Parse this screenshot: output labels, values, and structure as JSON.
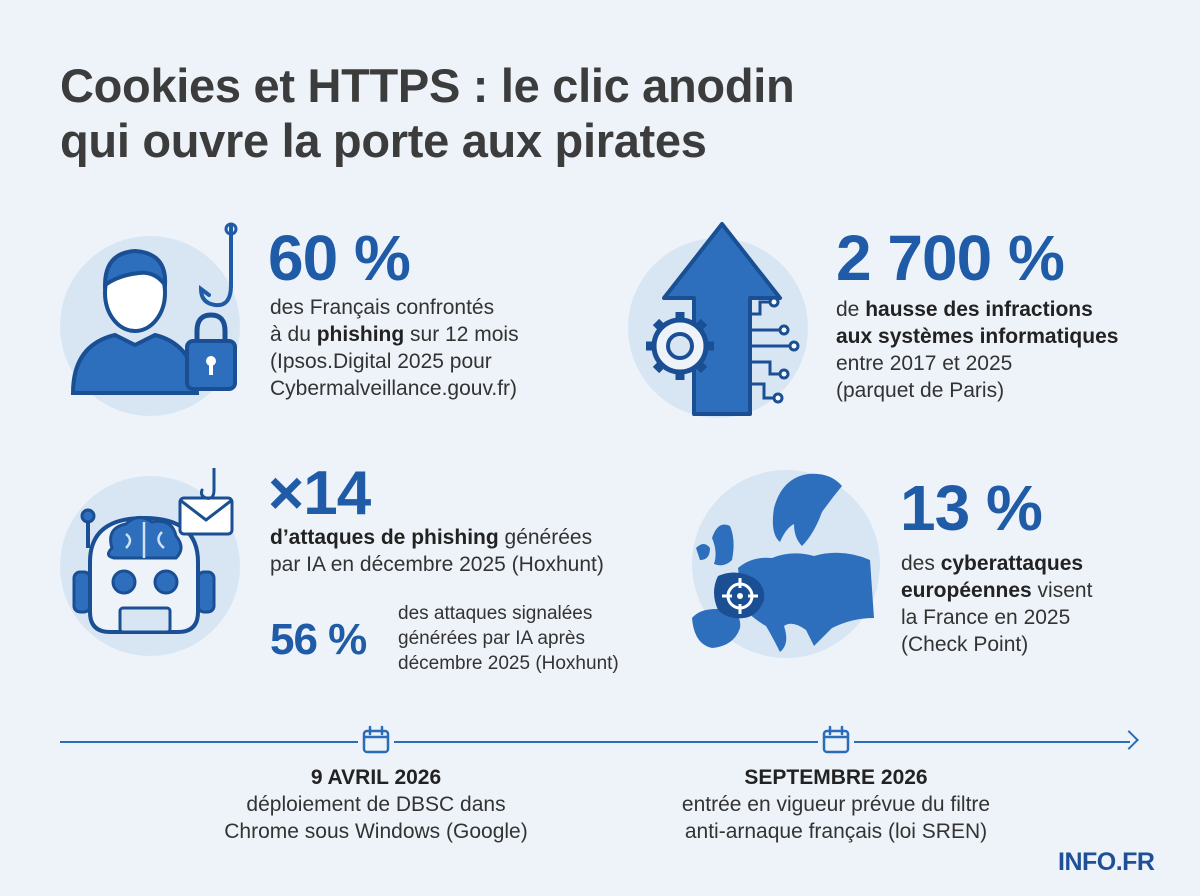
{
  "title_line1": "Cookies et HTTPS : le clic anodin",
  "title_line2": "qui ouvre la porte aux pirates",
  "stats": {
    "phishing": {
      "value": "60 %",
      "line1": "des Français confrontés",
      "line2_pre": "à du ",
      "line2_bold": "phishing",
      "line2_post": " sur 12 mois",
      "line3": "(Ipsos.Digital 2025 pour",
      "line4": "Cybermalveillance.gouv.fr)"
    },
    "infractions": {
      "value": "2 700 %",
      "line1_pre": "de ",
      "line1_bold": "hausse des infractions",
      "line2_bold": "aux systèmes informatiques",
      "line3": "entre 2017 et 2025",
      "line4": "(parquet de Paris)"
    },
    "ia": {
      "value": "×14",
      "line1_bold": "d’attaques de phishing",
      "line1_post": " générées",
      "line2": "par IA en décembre 2025 (Hoxhunt)",
      "sub_value": "56 %",
      "sub_line1": "des attaques signalées",
      "sub_line2": "générées par IA après",
      "sub_line3": "décembre 2025 (Hoxhunt)"
    },
    "europe": {
      "value": "13 %",
      "line1_pre": "des ",
      "line1_bold": "cyberattaques",
      "line2_bold": "européennes",
      "line2_post": " visent",
      "line3": "la France en 2025",
      "line4": "(Check Point)"
    }
  },
  "timeline": [
    {
      "date": "9 AVRIL 2026",
      "line1": "déploiement de DBSC dans",
      "line2": "Chrome sous Windows (Google)"
    },
    {
      "date": "SEPTEMBRE 2026",
      "line1": "entrée en vigueur prévue du filtre",
      "line2": "anti-arnaque français (loi SREN)"
    }
  ],
  "brand": "INFO.FR",
  "icons": [
    "user-phishing-lock-icon",
    "arrow-circuit-gear-icon",
    "robot-brain-email-icon",
    "europe-map-target-icon",
    "calendar-icon"
  ],
  "colors": {
    "accent": "#1f5ba6",
    "icon_fill": "#2e6fbd",
    "circle": "#d8e6f4",
    "background": "#edf3f9"
  }
}
